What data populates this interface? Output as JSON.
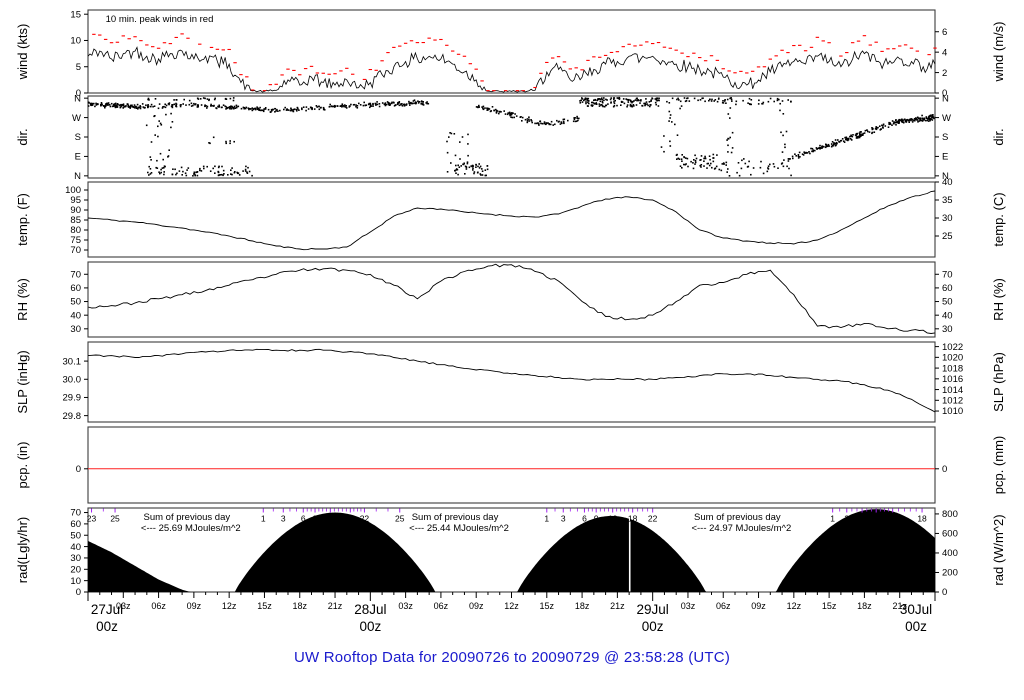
{
  "title": "UW Rooftop Data for 20090726  to  20090729 @ 23:58:28  (UTC)",
  "colors": {
    "border": "#3c3c3c",
    "series": "#000000",
    "red": "#ff0000",
    "day_red": "#ee2222",
    "purple": "#a020f0",
    "title_blue": "#1a1acd",
    "pcp_zero": "#ff2020",
    "white_divider": "#ffffff"
  },
  "x_axis": {
    "range_h": [
      0,
      72
    ],
    "day_labels": [
      {
        "h": 0,
        "date": "27Jul",
        "time": "00z"
      },
      {
        "h": 24,
        "date": "28Jul",
        "time": "00z"
      },
      {
        "h": 48,
        "date": "29Jul",
        "time": "00z"
      },
      {
        "h": 72,
        "date": "30Jul",
        "time": "00z"
      }
    ],
    "intraday_labels": [
      "03z",
      "06z",
      "09z",
      "12z",
      "15z",
      "18z",
      "21z"
    ]
  },
  "chart_data": {
    "type": "line",
    "title": "UW Rooftop Data for 20090726  to  20090729 @ 23:58:28  (UTC)",
    "x_unit": "hours since 27 Jul 2009 00z, 3-day span",
    "panels": [
      {
        "id": "wind",
        "ylabel_left": "wind (kts)",
        "ylabel_right": "wind (m/s)",
        "ylim": [
          0,
          15.8
        ],
        "yticks_left": [
          0,
          5,
          10,
          15
        ],
        "yticks_right_ms": [
          0,
          2,
          4,
          6
        ],
        "annotation": {
          "text": "10 min. peak winds in red",
          "h": 1.5
        },
        "series_step_h": 1,
        "avg_kts": [
          7,
          8,
          6.5,
          7.5,
          8,
          7,
          6.5,
          7.5,
          8,
          6.5,
          7,
          6,
          5.5,
          2,
          0.4,
          0.3,
          0.5,
          2.5,
          1.5,
          3,
          2,
          1.5,
          2.5,
          1,
          2,
          3.5,
          5,
          6,
          6.5,
          7,
          6.5,
          5.5,
          4,
          2.5,
          0.3,
          0.3,
          0.3,
          0.3,
          0.5,
          4,
          4.5,
          2.5,
          3,
          4.5,
          5.5,
          6,
          7,
          6.5,
          7,
          6,
          5.5,
          5,
          4.5,
          4,
          3,
          2,
          1.5,
          2.5,
          4,
          5,
          6,
          5.5,
          7,
          6,
          5,
          6.5,
          7.5,
          6,
          5.5,
          6.5,
          6,
          5,
          5.5
        ],
        "peak_kts": [
          10,
          11,
          9.5,
          10.5,
          11,
          9.5,
          9,
          10,
          11,
          9.5,
          10,
          8.5,
          8,
          4,
          1,
          0.8,
          1.2,
          4.5,
          3,
          5,
          4,
          3,
          4.5,
          2.5,
          4,
          6,
          8,
          9,
          9.5,
          10,
          9.5,
          8,
          6.5,
          4.5,
          0.8,
          0.8,
          0.8,
          0.8,
          1.5,
          6,
          6.5,
          4.5,
          5,
          6.5,
          7.5,
          8,
          9.5,
          9,
          9.5,
          8.5,
          8,
          7.5,
          7,
          6.5,
          5,
          4,
          3.5,
          4.5,
          6.5,
          7.5,
          9,
          8,
          10,
          9,
          7.5,
          9,
          10.5,
          9,
          8,
          9.5,
          9,
          7.5,
          8
        ]
      },
      {
        "id": "dir",
        "ylabel_left": "dir.",
        "ylabel_right": "dir.",
        "ylim": [
          -10,
          370
        ],
        "yticks": [
          {
            "v": 360,
            "t": "N"
          },
          {
            "v": 270,
            "t": "W"
          },
          {
            "v": 180,
            "t": "S"
          },
          {
            "v": 90,
            "t": "E"
          },
          {
            "v": 0,
            "t": "N"
          }
        ],
        "scatter_bands": [
          {
            "h": [
              0,
              4.5
            ],
            "path": [
              [
                0,
                330
              ],
              [
                3,
                325
              ],
              [
                4.5,
                320
              ]
            ],
            "spread": 13,
            "n": 110
          },
          {
            "h": [
              4.8,
              7.4
            ],
            "dir": [
              60,
              300
            ],
            "n": 22
          },
          {
            "h": [
              5,
              14
            ],
            "dir": [
              0,
              45
            ],
            "n": 85
          },
          {
            "h": [
              5,
              13
            ],
            "dir": [
              348,
              362
            ],
            "n": 25
          },
          {
            "h": [
              10,
              13
            ],
            "dir": [
              150,
              200
            ],
            "n": 8
          },
          {
            "h": [
              4.5,
              29
            ],
            "path": [
              [
                4.5,
                320
              ],
              [
                8,
                330
              ],
              [
                12,
                318
              ],
              [
                16,
                303
              ],
              [
                20,
                318
              ],
              [
                24,
                330
              ],
              [
                29,
                340
              ]
            ],
            "spread": 13,
            "n": 330
          },
          {
            "h": [
              30.5,
              32.5
            ],
            "dir": [
              0,
              200
            ],
            "n": 20
          },
          {
            "h": [
              31,
              34
            ],
            "dir": [
              0,
              60
            ],
            "n": 45
          },
          {
            "h": [
              33,
              41.8
            ],
            "path": [
              [
                33,
                320
              ],
              [
                35,
                300
              ],
              [
                37,
                265
              ],
              [
                38.5,
                243
              ],
              [
                40,
                250
              ],
              [
                41.8,
                265
              ]
            ],
            "spread": 16,
            "n": 110
          },
          {
            "h": [
              41.8,
              48.6
            ],
            "dir": [
              320,
              362
            ],
            "n": 150
          },
          {
            "h": [
              48.6,
              50.5
            ],
            "dir": [
              90,
              360
            ],
            "n": 18
          },
          {
            "h": [
              50,
              53.5
            ],
            "dir": [
              30,
              100
            ],
            "n": 55
          },
          {
            "h": [
              50,
              53.5
            ],
            "dir": [
              345,
              362
            ],
            "n": 22
          },
          {
            "h": [
              53.5,
              57.5
            ],
            "dir": [
              330,
              362
            ],
            "n": 28
          },
          {
            "h": [
              53.5,
              57.5
            ],
            "dir": [
              0,
              80
            ],
            "n": 26
          },
          {
            "h": [
              54.2,
              54.8
            ],
            "dir": [
              100,
              330
            ],
            "n": 12
          },
          {
            "h": [
              57.5,
              60
            ],
            "dir": [
              0,
              60
            ],
            "n": 14
          },
          {
            "h": [
              57.5,
              60
            ],
            "dir": [
              340,
              362
            ],
            "n": 10
          },
          {
            "h": [
              58.8,
              59.4
            ],
            "dir": [
              60,
              340
            ],
            "n": 10
          },
          {
            "h": [
              59.5,
              64.5
            ],
            "path": [
              [
                59.5,
                80
              ],
              [
                64.5,
                170
              ]
            ],
            "spread": 16,
            "n": 85
          },
          {
            "h": [
              64.5,
              68.7
            ],
            "path": [
              [
                64.5,
                170
              ],
              [
                68.7,
                248
              ]
            ],
            "spread": 15,
            "n": 85
          },
          {
            "h": [
              68.7,
              72
            ],
            "path": [
              [
                68.7,
                252
              ],
              [
                72,
                272
              ]
            ],
            "spread": 16,
            "n": 105
          }
        ]
      },
      {
        "id": "temp",
        "ylabel_left": "temp. (F)",
        "ylabel_right": "temp. (C)",
        "ylim": [
          66.5,
          104
        ],
        "yticks_left": [
          70,
          75,
          80,
          85,
          90,
          95,
          100
        ],
        "yticks_right_c": [
          25,
          30,
          35,
          40
        ],
        "series_step_h": 2,
        "temp_f": [
          86,
          85,
          84,
          82.5,
          81,
          79,
          77,
          74.5,
          72,
          70.5,
          70.5,
          71.5,
          79,
          87,
          91,
          90.5,
          89,
          88,
          87,
          86.5,
          88,
          92,
          95.5,
          96.5,
          95,
          89,
          80,
          76,
          74.5,
          73.5,
          73,
          75,
          80,
          86,
          92,
          96.5,
          99.5
        ]
      },
      {
        "id": "rh",
        "ylabel_left": "RH (%)",
        "ylabel_right": "RH (%)",
        "ylim": [
          24,
          79
        ],
        "yticks": [
          30,
          40,
          50,
          60,
          70
        ],
        "series_step_h": 2,
        "rh_pct": [
          46,
          47,
          49,
          52,
          55,
          58,
          62,
          66,
          70,
          73,
          74,
          73,
          70,
          62,
          52,
          65,
          72,
          76,
          77,
          72,
          65,
          50,
          39,
          37,
          40,
          50,
          62,
          64,
          70,
          73,
          55,
          32,
          31,
          34,
          30,
          29,
          27
        ]
      },
      {
        "id": "slp",
        "ylabel_left": "SLP (inHg)",
        "ylabel_right": "SLP (hPa)",
        "ylim": [
          29.765,
          30.205
        ],
        "yticks_left": [
          "29.8",
          "29.9",
          "30.0",
          "30.1"
        ],
        "yticks_right_hpa": [
          1010,
          1012,
          1014,
          1016,
          1018,
          1020,
          1022
        ],
        "series_step_h": 2,
        "slp_inhg": [
          30.13,
          30.13,
          30.12,
          30.13,
          30.14,
          30.15,
          30.16,
          30.16,
          30.16,
          30.16,
          30.16,
          30.15,
          30.14,
          30.12,
          30.1,
          30.08,
          30.06,
          30.05,
          30.03,
          30.02,
          30.01,
          30.0,
          30.0,
          30.0,
          30.0,
          30.01,
          30.02,
          30.03,
          30.03,
          30.02,
          30.01,
          30.0,
          29.99,
          29.97,
          29.94,
          29.89,
          29.82
        ]
      },
      {
        "id": "pcp",
        "ylabel_left": "pcp. (in)",
        "ylabel_right": "pcp. (mm)",
        "ylim": [
          -0.9,
          1.1
        ],
        "yticks": [
          0
        ],
        "pcp_in_constant": 0
      },
      {
        "id": "rad",
        "ylabel_left": "rad(Lgly/hr)",
        "ylabel_right": "rad (W/m^2)",
        "ylim": [
          0,
          74
        ],
        "yticks_left": [
          0,
          10,
          20,
          30,
          40,
          50,
          60,
          70
        ],
        "yticks_right_wm2": [
          0,
          200,
          400,
          600,
          800
        ],
        "first_partial_decline": [
          [
            0,
            45
          ],
          [
            2,
            35
          ],
          [
            4,
            23
          ],
          [
            6,
            11
          ],
          [
            8,
            2
          ],
          [
            8.7,
            0
          ]
        ],
        "sun_bumps": [
          {
            "center_h": 21,
            "half_width_h": 8.5,
            "peak": 70
          },
          {
            "center_h": 44.5,
            "half_width_h": 8,
            "peak": 67
          },
          {
            "center_h": 67,
            "half_width_h": 8.5,
            "peak": 73
          }
        ],
        "white_divider_h": 46.05,
        "cum_mj_ticks": [
          {
            "labels": [
              {
                "t": "23",
                "h": 0.3
              },
              {
                "t": "25",
                "h": 2.3
              }
            ]
          },
          {
            "labels": [
              {
                "t": "1",
                "h": 14.9
              },
              {
                "t": "3",
                "h": 16.6
              },
              {
                "t": "6",
                "h": 18.3
              },
              {
                "t": "9",
                "h": 19.3
              },
              {
                "t": "13",
                "h": 20.6
              },
              {
                "t": "18",
                "h": 22.3
              },
              {
                "t": "22",
                "h": 23.5
              },
              {
                "t": "25",
                "h": 26.5
              }
            ]
          },
          {
            "labels": [
              {
                "t": "1",
                "h": 39.0
              },
              {
                "t": "3",
                "h": 40.4
              },
              {
                "t": "6",
                "h": 42.2
              },
              {
                "t": "9",
                "h": 43.2
              },
              {
                "t": "13",
                "h": 44.6
              },
              {
                "t": "18",
                "h": 46.3
              },
              {
                "t": "22",
                "h": 48.0
              }
            ]
          },
          {
            "labels": [
              {
                "t": "1",
                "h": 63.3
              },
              {
                "t": "3",
                "h": 64.5
              },
              {
                "t": "6",
                "h": 65.8
              },
              {
                "t": "9",
                "h": 67.0
              },
              {
                "t": "13",
                "h": 68.4
              },
              {
                "t": "18",
                "h": 70.9
              }
            ]
          }
        ],
        "day_sums": [
          {
            "h": 8.4,
            "line1": "Sum of previous day",
            "line2": "<--- 25.69 MJoules/m^2"
          },
          {
            "h": 31.2,
            "line1": "Sum of previous day",
            "line2": "<--- 25.44 MJoules/m^2"
          },
          {
            "h": 55.2,
            "line1": "Sum of previous day",
            "line2": "<--- 24.97 MJoules/m^2"
          }
        ]
      }
    ]
  }
}
